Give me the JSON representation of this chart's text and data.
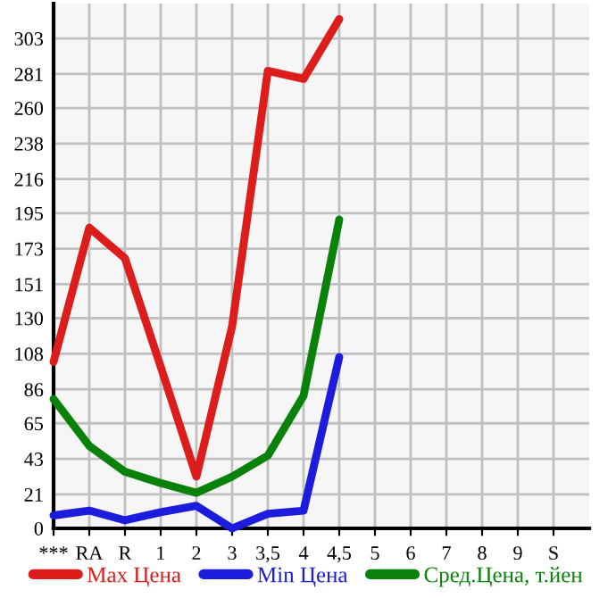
{
  "chart_data": {
    "type": "line",
    "categories": [
      "***",
      "RA",
      "R",
      "1",
      "2",
      "3",
      "3,5",
      "4",
      "4,5",
      "5",
      "6",
      "7",
      "8",
      "9",
      "S"
    ],
    "series": [
      {
        "name": "Max Цена",
        "color": "#dd1c1c",
        "values": [
          103,
          186,
          167,
          100,
          32,
          125,
          283,
          278,
          315,
          null,
          null,
          null,
          null,
          null,
          null
        ]
      },
      {
        "name": "Min Цена",
        "color": "#1c1cdd",
        "values": [
          8,
          11,
          5,
          10,
          14,
          0,
          9,
          11,
          106,
          null,
          null,
          null,
          null,
          null,
          null
        ]
      },
      {
        "name": "Сред.Цена, т.йен",
        "color": "#0a820a",
        "values": [
          80,
          51,
          35,
          28,
          22,
          32,
          45,
          82,
          191,
          null,
          null,
          null,
          null,
          null,
          null
        ]
      }
    ],
    "ylim": [
      0,
      324.6
    ],
    "yticks": [
      0,
      21,
      43,
      65,
      86,
      108,
      130,
      151,
      173,
      195,
      216,
      238,
      260,
      281,
      303
    ],
    "grid": true,
    "legend": "bottom",
    "marker": "none",
    "line_style": "solid"
  }
}
